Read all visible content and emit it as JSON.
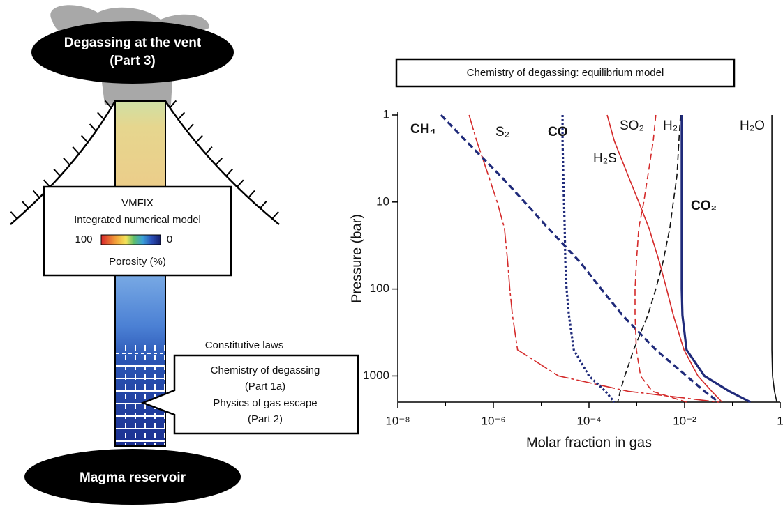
{
  "diagram": {
    "vent": {
      "title": "Degassing at the vent",
      "part": "(Part 3)"
    },
    "model": {
      "name": "VMFIX",
      "subtitle": "Integrated numerical model",
      "colorbar": {
        "from": 100,
        "to": 0,
        "label": "Porosity (%)"
      }
    },
    "laws": {
      "title": "Constitutive laws",
      "lines": [
        "Chemistry of degassing",
        "(Part 1a)",
        "Physics of gas escape",
        "(Part 2)"
      ]
    },
    "reservoir": "Magma reservoir"
  },
  "chart_data": {
    "type": "line",
    "title": "Chemistry of degassing: equilibrium model",
    "xlabel": "Molar fraction in gas",
    "ylabel": "Pressure (bar)",
    "xscale": "log",
    "yscale": "log",
    "y_inverted": true,
    "xlim": [
      1e-08,
      1
    ],
    "ylim": [
      1,
      2000
    ],
    "xticks": [
      {
        "value": 1e-08,
        "label": "10⁻⁸"
      },
      {
        "value": 1e-06,
        "label": "10⁻⁶"
      },
      {
        "value": 0.0001,
        "label": "10⁻⁴"
      },
      {
        "value": 0.01,
        "label": "10⁻²"
      },
      1
    ],
    "xminor": [
      1e-07,
      1e-05,
      0.001,
      0.1
    ],
    "yticks": [
      1,
      10,
      100,
      1000
    ],
    "y": [
      1,
      2,
      5,
      10,
      20,
      50,
      100,
      200,
      500,
      1000,
      1500,
      2000
    ],
    "series": [
      {
        "name": "CH₄",
        "color": "#1f2a7a",
        "style": "dashed",
        "bold": true,
        "values": [
          8e-08,
          2.7e-07,
          1.4e-06,
          4.5e-06,
          1.4e-05,
          6.7e-05,
          0.00018,
          0.0005,
          0.0025,
          0.011,
          0.026,
          0.052
        ]
      },
      {
        "name": "S₂",
        "color": "#d42a2a",
        "style": "long-dash",
        "bold": false,
        "values": [
          3.1e-07,
          4.5e-07,
          7.9e-07,
          1.2e-06,
          1.7e-06,
          2e-06,
          2.2e-06,
          2.5e-06,
          3.2e-06,
          2.3e-05,
          0.00066,
          0.052
        ]
      },
      {
        "name": "CO",
        "color": "#1f2a7a",
        "style": "dotted",
        "bold": true,
        "values": [
          2.8e-05,
          2.8e-05,
          2.9e-05,
          3e-05,
          3.1e-05,
          3.2e-05,
          3.4e-05,
          3.8e-05,
          4.8e-05,
          0.0001,
          0.00022,
          0.00034
        ]
      },
      {
        "name": "SO₂",
        "color": "#d42a2a",
        "style": "dashed",
        "bold": false,
        "values": [
          0.0025,
          0.0022,
          0.0017,
          0.0014,
          0.0011,
          0.00098,
          0.00092,
          0.00092,
          0.00098,
          0.0012,
          0.0021,
          0.011
        ]
      },
      {
        "name": "H₂",
        "color": "#111111",
        "style": "dashed",
        "bold": false,
        "values": [
          0.0082,
          0.0076,
          0.0069,
          0.0058,
          0.0049,
          0.0035,
          0.0025,
          0.0017,
          0.00086,
          0.00056,
          0.00045,
          0.0004
        ]
      },
      {
        "name": "H₂S",
        "color": "#d42a2a",
        "style": "solid",
        "bold": false,
        "values": [
          0.00024,
          0.00034,
          0.00066,
          0.0011,
          0.0018,
          0.003,
          0.0042,
          0.0058,
          0.0097,
          0.019,
          0.037,
          0.061
        ]
      },
      {
        "name": "CO₂",
        "color": "#1f2a7a",
        "style": "solid",
        "bold": true,
        "values": [
          0.0087,
          0.0087,
          0.0087,
          0.0087,
          0.0087,
          0.0087,
          0.0087,
          0.009,
          0.011,
          0.026,
          0.086,
          0.24
        ]
      },
      {
        "name": "H₂O",
        "color": "#111111",
        "style": "solid",
        "bold": false,
        "values": [
          0.67,
          0.67,
          0.67,
          0.67,
          0.67,
          0.67,
          0.67,
          0.67,
          0.67,
          0.69,
          0.76,
          0.85
        ]
      }
    ]
  }
}
